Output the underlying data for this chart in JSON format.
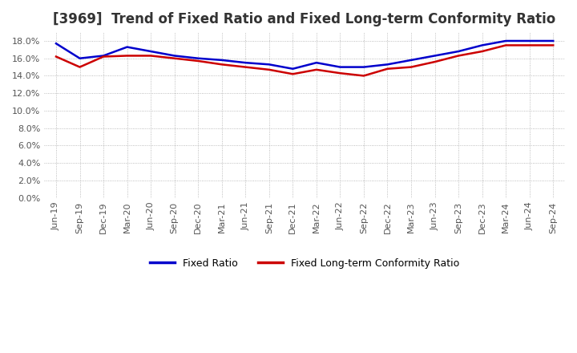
{
  "title": "[3969]  Trend of Fixed Ratio and Fixed Long-term Conformity Ratio",
  "title_fontsize": 12,
  "ylim": [
    0,
    0.19
  ],
  "yticks": [
    0.0,
    0.02,
    0.04,
    0.06,
    0.08,
    0.1,
    0.12,
    0.14,
    0.16,
    0.18
  ],
  "line1_color": "#0000cc",
  "line2_color": "#cc0000",
  "line1_label": "Fixed Ratio",
  "line2_label": "Fixed Long-term Conformity Ratio",
  "background_color": "#ffffff",
  "plot_bg_color": "#ffffff",
  "grid_color": "#aaaaaa",
  "x_labels": [
    "Jun-19",
    "Sep-19",
    "Dec-19",
    "Mar-20",
    "Jun-20",
    "Sep-20",
    "Dec-20",
    "Mar-21",
    "Jun-21",
    "Sep-21",
    "Dec-21",
    "Mar-22",
    "Jun-22",
    "Sep-22",
    "Dec-22",
    "Mar-23",
    "Jun-23",
    "Sep-23",
    "Dec-23",
    "Mar-24",
    "Jun-24",
    "Sep-24"
  ],
  "fixed_ratio": [
    0.177,
    0.16,
    0.163,
    0.173,
    0.168,
    0.163,
    0.16,
    0.158,
    0.155,
    0.153,
    0.148,
    0.155,
    0.15,
    0.15,
    0.153,
    0.158,
    0.163,
    0.168,
    0.175,
    0.18,
    0.18,
    0.18
  ],
  "fixed_lt_ratio": [
    0.162,
    0.15,
    0.162,
    0.163,
    0.163,
    0.16,
    0.157,
    0.153,
    0.15,
    0.147,
    0.142,
    0.147,
    0.143,
    0.14,
    0.148,
    0.15,
    0.156,
    0.163,
    0.168,
    0.175,
    0.175,
    0.175
  ],
  "linewidth": 1.8,
  "tick_fontsize": 8,
  "tick_color": "#555555",
  "legend_fontsize": 9
}
